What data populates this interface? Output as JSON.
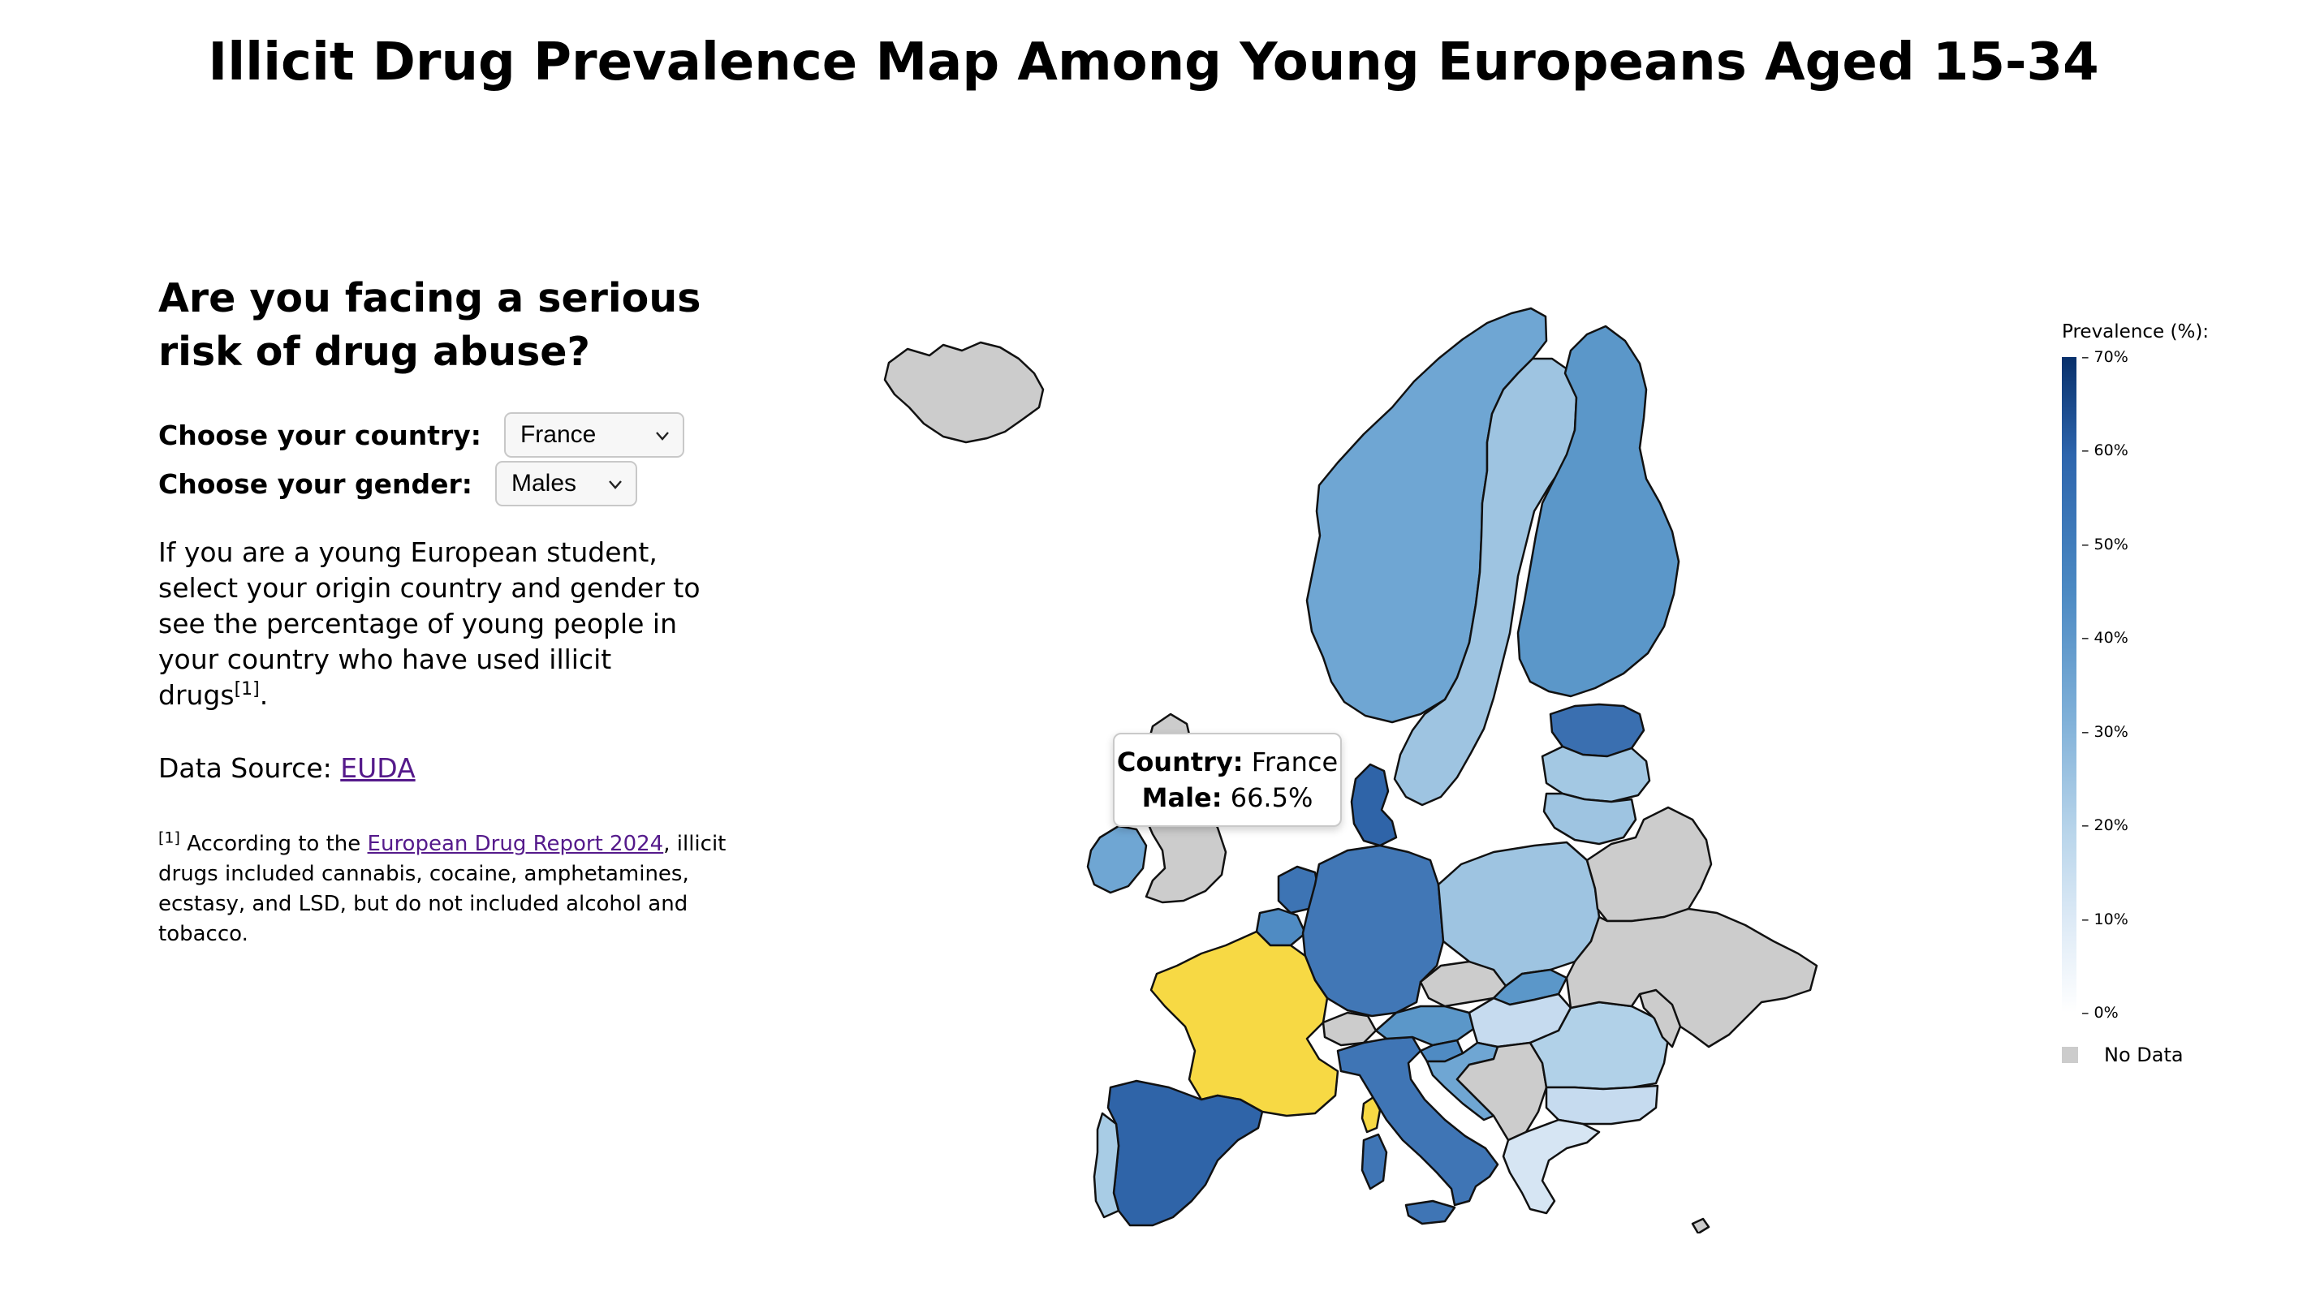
{
  "title": "Illicit Drug Prevalence Map Among Young Europeans Aged 15-34",
  "panel": {
    "question": "Are you facing a serious risk of drug abuse?",
    "country_label": "Choose your country:",
    "country_value": "France",
    "gender_label": "Choose your gender:",
    "gender_value": "Males",
    "description": "If you are a young European student, select your origin country and gender to see the percentage of young people in your country who have used illicit drugs",
    "description_ref": "[1]",
    "description_end": ".",
    "source_prefix": "Data Source: ",
    "source_link": "EUDA",
    "footnote_ref": "[1]",
    "footnote_pre": " According to the ",
    "footnote_link": "European Drug Report 2024",
    "footnote_post": ", illicit drugs included cannabis, cocaine, amphetamines, ecstasy, and LSD, but do not included alcohol and tobacco."
  },
  "tooltip": {
    "country_label": "Country:",
    "country_value": "France",
    "metric_label": "Male:",
    "metric_value": "66.5%"
  },
  "legend": {
    "title": "Prevalence (%):",
    "ticks": [
      "70%",
      "60%",
      "50%",
      "40%",
      "30%",
      "20%",
      "10%",
      "0%"
    ],
    "no_data_label": "No Data"
  },
  "colors": {
    "selected": "#f7d944",
    "no_data": "#cccccc",
    "border": "#111111"
  },
  "map": {
    "selected_country": "France",
    "regions": [
      {
        "name": "Iceland",
        "shade": "#cccccc"
      },
      {
        "name": "Norway",
        "shade": "#6fa6d3"
      },
      {
        "name": "Sweden",
        "shade": "#9ec4e1"
      },
      {
        "name": "Finland",
        "shade": "#5b97c9"
      },
      {
        "name": "Estonia",
        "shade": "#3a6fb0"
      },
      {
        "name": "Latvia",
        "shade": "#a3c8e3"
      },
      {
        "name": "Lithuania",
        "shade": "#9ec4e1"
      },
      {
        "name": "United Kingdom",
        "shade": "#cccccc"
      },
      {
        "name": "Ireland",
        "shade": "#6fa6d3"
      },
      {
        "name": "Denmark",
        "shade": "#2f64a8"
      },
      {
        "name": "Germany",
        "shade": "#4177b6"
      },
      {
        "name": "Netherlands",
        "shade": "#3d74b4"
      },
      {
        "name": "Belgium",
        "shade": "#4f8bc3"
      },
      {
        "name": "France",
        "shade": "#f7d944"
      },
      {
        "name": "Spain",
        "shade": "#2f64a8"
      },
      {
        "name": "Portugal",
        "shade": "#a8cce5"
      },
      {
        "name": "Switzerland",
        "shade": "#cccccc"
      },
      {
        "name": "Italy",
        "shade": "#3f75b5"
      },
      {
        "name": "Austria",
        "shade": "#5b97c9"
      },
      {
        "name": "Czechia",
        "shade": "#cccccc"
      },
      {
        "name": "Poland",
        "shade": "#9ec4e1"
      },
      {
        "name": "Slovakia",
        "shade": "#5b97c9"
      },
      {
        "name": "Hungary",
        "shade": "#c6dbef"
      },
      {
        "name": "Slovenia",
        "shade": "#4f8bc3"
      },
      {
        "name": "Croatia",
        "shade": "#6fa6d3"
      },
      {
        "name": "Romania",
        "shade": "#b1d1e8"
      },
      {
        "name": "Bulgaria",
        "shade": "#c6dbef"
      },
      {
        "name": "Greece",
        "shade": "#d6e5f3"
      },
      {
        "name": "Belarus",
        "shade": "#cccccc"
      },
      {
        "name": "Ukraine",
        "shade": "#cccccc"
      },
      {
        "name": "Moldova",
        "shade": "#cccccc"
      },
      {
        "name": "Western Balkans",
        "shade": "#cccccc"
      },
      {
        "name": "Cyprus",
        "shade": "#cccccc"
      }
    ]
  }
}
